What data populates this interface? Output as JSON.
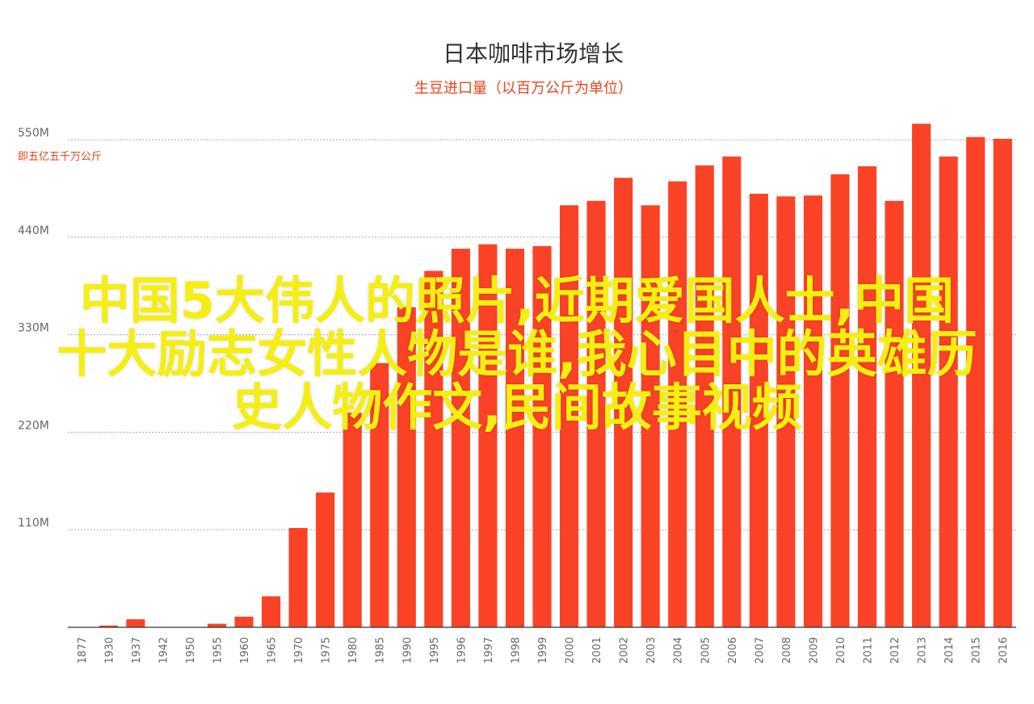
{
  "chart_data": {
    "type": "bar",
    "title": "日本咖啡市场增长",
    "subtitle": "生豆进口量（以百万公斤为单位）",
    "ylabel_unit": "即五亿五千万公斤",
    "yticks": [
      "550M",
      "440M",
      "330M",
      "220M",
      "110M"
    ],
    "ytick_values": [
      550,
      440,
      330,
      220,
      110
    ],
    "ylim": [
      0,
      550
    ],
    "grid": true,
    "categories": [
      "1877",
      "1930",
      "1937",
      "1942",
      "1950",
      "1955",
      "1960",
      "1965",
      "1970",
      "1975",
      "1980",
      "1985",
      "1990",
      "1995",
      "1996",
      "1997",
      "1998",
      "1999",
      "2000",
      "2001",
      "2002",
      "2003",
      "2004",
      "2005",
      "2006",
      "2007",
      "2008",
      "2009",
      "2010",
      "2011",
      "2012",
      "2013",
      "2014",
      "2015",
      "2016"
    ],
    "values": [
      0,
      2,
      9,
      0,
      0,
      4,
      12,
      35,
      112,
      152,
      242,
      298,
      361,
      402,
      427,
      432,
      427,
      430,
      476,
      481,
      507,
      476,
      503,
      521,
      531,
      489,
      486,
      487,
      511,
      520,
      481,
      568,
      531,
      553,
      551
    ]
  },
  "colors": {
    "bar": "#fa4326",
    "title": "#333333",
    "subtitle": "#e8451e",
    "overlay_text": "#f4ef10"
  },
  "overlay": {
    "lines": [
      "中国5大伟人的照片,近期爱国人士,中国",
      "十大励志女性人物是谁,我心目中的英雄历",
      "史人物作文,民间故事视频"
    ]
  }
}
